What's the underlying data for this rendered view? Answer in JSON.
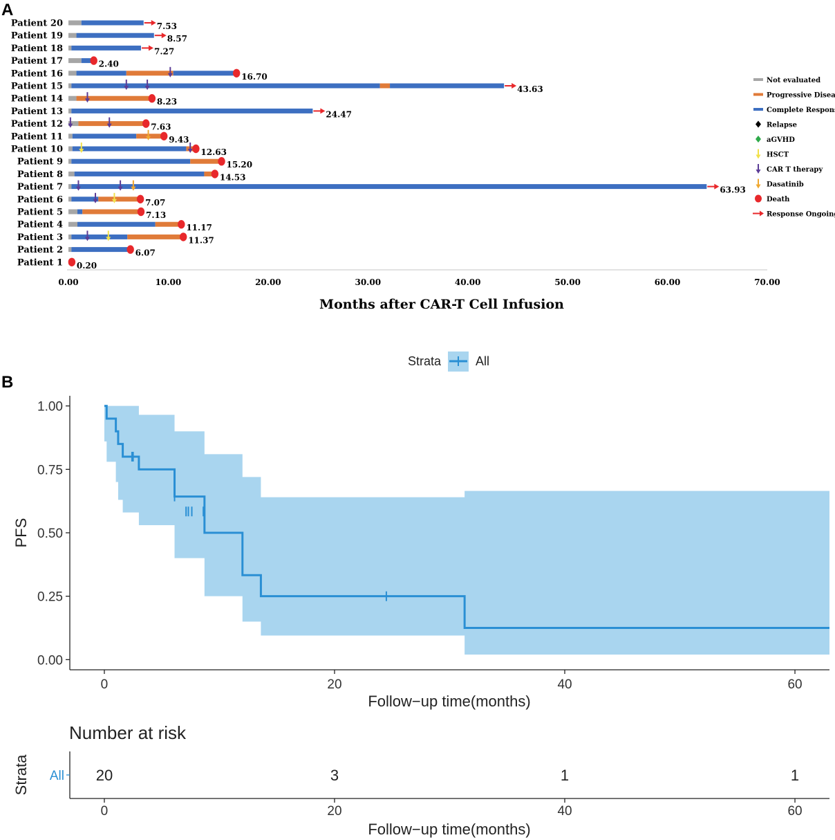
{
  "panel_labels": {
    "a": "A",
    "b": "B"
  },
  "colors": {
    "not_evaluated": "#a6a6a6",
    "progressive": "#e07b39",
    "complete": "#3d6fc1",
    "relapse": "#000000",
    "agvhd": "#2eaa4a",
    "hsct": "#f2e14a",
    "cart": "#5b3c96",
    "dasatinib": "#f0a830",
    "death": "#e8282b",
    "ongoing": "#e8282b",
    "km_line": "#2a8fd4",
    "km_band": "#a9d5ef"
  },
  "chart_data": [
    {
      "type": "bar",
      "subtype": "swimmer",
      "xlabel": "Months after CAR-T Cell Infusion",
      "xlim": [
        0,
        70
      ],
      "xticks": [
        "0.00",
        "10.00",
        "20.00",
        "30.00",
        "40.00",
        "50.00",
        "60.00",
        "70.00"
      ],
      "legend_position": "right",
      "legend": [
        {
          "key": "not_evaluated",
          "label": "Not evaluated",
          "shape": "line"
        },
        {
          "key": "progressive",
          "label": "Progressive Disease",
          "shape": "line"
        },
        {
          "key": "complete",
          "label": "Complete Response",
          "shape": "line"
        },
        {
          "key": "relapse",
          "label": "Relapse",
          "shape": "diamond"
        },
        {
          "key": "agvhd",
          "label": "aGVHD",
          "shape": "diamond"
        },
        {
          "key": "hsct",
          "label": "HSCT",
          "shape": "arrow"
        },
        {
          "key": "cart",
          "label": "CAR T therapy",
          "shape": "arrow"
        },
        {
          "key": "dasatinib",
          "label": "Dasatinib",
          "shape": "arrow"
        },
        {
          "key": "death",
          "label": "Death",
          "shape": "circle"
        },
        {
          "key": "ongoing",
          "label": "Response Ongoing",
          "shape": "rarrow"
        }
      ],
      "patients": [
        {
          "label": "Patient 1",
          "total": 0.2,
          "value_label": "0.20",
          "end": "death",
          "segments": [
            {
              "s": "not_evaluated",
              "from": 0,
              "to": 0.2
            }
          ],
          "events": []
        },
        {
          "label": "Patient 2",
          "total": 6.07,
          "value_label": "6.07",
          "end": "death",
          "segments": [
            {
              "s": "not_evaluated",
              "from": 0,
              "to": 0.3
            },
            {
              "s": "complete",
              "from": 0.3,
              "to": 6.07
            }
          ],
          "events": []
        },
        {
          "label": "Patient 3",
          "total": 11.37,
          "value_label": "11.37",
          "end": "death",
          "segments": [
            {
              "s": "not_evaluated",
              "from": 0,
              "to": 0.3
            },
            {
              "s": "complete",
              "from": 0.3,
              "to": 5.9
            },
            {
              "s": "progressive",
              "from": 5.9,
              "to": 11.37
            }
          ],
          "events": [
            {
              "type": "cart",
              "t": 1.9
            },
            {
              "type": "hsct",
              "t": 4.0
            }
          ]
        },
        {
          "label": "Patient 4",
          "total": 11.17,
          "value_label": "11.17",
          "end": "death",
          "segments": [
            {
              "s": "not_evaluated",
              "from": 0,
              "to": 0.9
            },
            {
              "s": "complete",
              "from": 0.9,
              "to": 8.7
            },
            {
              "s": "progressive",
              "from": 8.7,
              "to": 11.17
            }
          ],
          "events": []
        },
        {
          "label": "Patient 5",
          "total": 7.13,
          "value_label": "7.13",
          "end": "death",
          "segments": [
            {
              "s": "not_evaluated",
              "from": 0,
              "to": 0.9
            },
            {
              "s": "complete",
              "from": 0.9,
              "to": 1.4
            },
            {
              "s": "progressive",
              "from": 1.4,
              "to": 7.13
            }
          ],
          "events": []
        },
        {
          "label": "Patient 6",
          "total": 7.07,
          "value_label": "7.07",
          "end": "death",
          "segments": [
            {
              "s": "not_evaluated",
              "from": 0,
              "to": 0.3
            },
            {
              "s": "complete",
              "from": 0.3,
              "to": 3.0
            },
            {
              "s": "progressive",
              "from": 3.0,
              "to": 7.07
            }
          ],
          "events": [
            {
              "type": "cart",
              "t": 2.7
            },
            {
              "type": "hsct",
              "t": 4.6
            }
          ]
        },
        {
          "label": "Patient 7",
          "total": 63.93,
          "value_label": "63.93",
          "end": "ongoing",
          "segments": [
            {
              "s": "not_evaluated",
              "from": 0,
              "to": 0.3
            },
            {
              "s": "complete",
              "from": 0.3,
              "to": 63.93
            }
          ],
          "events": [
            {
              "type": "cart",
              "t": 1.0
            },
            {
              "type": "cart",
              "t": 5.2
            },
            {
              "type": "dasatinib",
              "t": 6.5
            }
          ]
        },
        {
          "label": "Patient 8",
          "total": 14.53,
          "value_label": "14.53",
          "end": "death",
          "segments": [
            {
              "s": "not_evaluated",
              "from": 0,
              "to": 0.6
            },
            {
              "s": "complete",
              "from": 0.6,
              "to": 13.6
            },
            {
              "s": "progressive",
              "from": 13.6,
              "to": 14.53
            }
          ],
          "events": []
        },
        {
          "label": "Patient 9",
          "total": 15.2,
          "value_label": "15.20",
          "end": "death",
          "segments": [
            {
              "s": "not_evaluated",
              "from": 0,
              "to": 0.3
            },
            {
              "s": "complete",
              "from": 0.3,
              "to": 12.2
            },
            {
              "s": "progressive",
              "from": 12.2,
              "to": 15.2
            }
          ],
          "events": []
        },
        {
          "label": "Patient 10",
          "total": 12.63,
          "value_label": "12.63",
          "end": "death",
          "segments": [
            {
              "s": "not_evaluated",
              "from": 0,
              "to": 0.4
            },
            {
              "s": "complete",
              "from": 0.4,
              "to": 11.8
            },
            {
              "s": "progressive",
              "from": 11.8,
              "to": 12.63
            }
          ],
          "events": [
            {
              "type": "hsct",
              "t": 1.3
            },
            {
              "type": "cart",
              "t": 12.2
            }
          ]
        },
        {
          "label": "Patient 11",
          "total": 9.43,
          "value_label": "9.43",
          "end": "death",
          "segments": [
            {
              "s": "not_evaluated",
              "from": 0,
              "to": 0.4
            },
            {
              "s": "complete",
              "from": 0.4,
              "to": 6.8
            },
            {
              "s": "progressive",
              "from": 6.8,
              "to": 9.43
            }
          ],
          "events": [
            {
              "type": "dasatinib",
              "t": 8.0
            }
          ]
        },
        {
          "label": "Patient 12",
          "total": 7.63,
          "value_label": "7.63",
          "end": "death",
          "segments": [
            {
              "s": "not_evaluated",
              "from": 0,
              "to": 1.0
            },
            {
              "s": "progressive",
              "from": 1.0,
              "to": 7.63
            }
          ],
          "events": [
            {
              "type": "cart",
              "t": 0.2
            },
            {
              "type": "cart",
              "t": 4.1
            }
          ]
        },
        {
          "label": "Patient 13",
          "total": 24.47,
          "value_label": "24.47",
          "end": "ongoing",
          "segments": [
            {
              "s": "not_evaluated",
              "from": 0,
              "to": 0.3
            },
            {
              "s": "complete",
              "from": 0.3,
              "to": 24.47
            }
          ],
          "events": []
        },
        {
          "label": "Patient 14",
          "total": 8.23,
          "value_label": "8.23",
          "end": "death",
          "segments": [
            {
              "s": "not_evaluated",
              "from": 0,
              "to": 0.8
            },
            {
              "s": "progressive",
              "from": 0.8,
              "to": 8.23
            }
          ],
          "events": [
            {
              "type": "cart",
              "t": 1.9
            }
          ]
        },
        {
          "label": "Patient 15",
          "total": 43.63,
          "value_label": "43.63",
          "end": "ongoing",
          "segments": [
            {
              "s": "not_evaluated",
              "from": 0,
              "to": 0.3
            },
            {
              "s": "complete",
              "from": 0.3,
              "to": 31.2
            },
            {
              "s": "progressive",
              "from": 31.2,
              "to": 32.2
            },
            {
              "s": "complete",
              "from": 32.2,
              "to": 43.63
            }
          ],
          "events": [
            {
              "type": "cart",
              "t": 5.8
            },
            {
              "type": "cart",
              "t": 7.9
            }
          ]
        },
        {
          "label": "Patient 16",
          "total": 16.7,
          "value_label": "16.70",
          "end": "death",
          "segments": [
            {
              "s": "not_evaluated",
              "from": 0,
              "to": 0.8
            },
            {
              "s": "complete",
              "from": 0.8,
              "to": 5.8
            },
            {
              "s": "progressive",
              "from": 5.8,
              "to": 10.5
            },
            {
              "s": "complete",
              "from": 10.5,
              "to": 16.7
            }
          ],
          "events": [
            {
              "type": "cart",
              "t": 10.2
            }
          ]
        },
        {
          "label": "Patient 17",
          "total": 2.4,
          "value_label": "2.40",
          "end": "death",
          "segments": [
            {
              "s": "not_evaluated",
              "from": 0,
              "to": 1.3
            },
            {
              "s": "complete",
              "from": 1.3,
              "to": 2.4
            }
          ],
          "events": []
        },
        {
          "label": "Patient 18",
          "total": 7.27,
          "value_label": "7.27",
          "end": "ongoing",
          "segments": [
            {
              "s": "not_evaluated",
              "from": 0,
              "to": 0.3
            },
            {
              "s": "complete",
              "from": 0.3,
              "to": 7.27
            }
          ],
          "events": []
        },
        {
          "label": "Patient 19",
          "total": 8.57,
          "value_label": "8.57",
          "end": "ongoing",
          "segments": [
            {
              "s": "not_evaluated",
              "from": 0,
              "to": 0.8
            },
            {
              "s": "complete",
              "from": 0.8,
              "to": 8.57
            }
          ],
          "events": []
        },
        {
          "label": "Patient 20",
          "total": 7.53,
          "value_label": "7.53",
          "end": "ongoing",
          "segments": [
            {
              "s": "not_evaluated",
              "from": 0,
              "to": 1.3
            },
            {
              "s": "complete",
              "from": 1.3,
              "to": 7.53
            }
          ],
          "events": []
        }
      ]
    },
    {
      "type": "line",
      "subtype": "kaplan-meier",
      "legend_title": "Strata",
      "legend_label": "All",
      "legend_position": "top",
      "ylabel": "PFS",
      "xlabel": "Follow−up time(months)",
      "xlim": [
        -3,
        63
      ],
      "ylim": [
        -0.04,
        1.04
      ],
      "xticks": [
        0,
        20,
        40,
        60
      ],
      "yticks": [
        "0.00",
        "0.25",
        "0.50",
        "0.75",
        "1.00"
      ],
      "series": [
        {
          "name": "All",
          "step_times": [
            0,
            0.2,
            1.0,
            1.2,
            1.6,
            3.0,
            6.1,
            8.7,
            12.0,
            13.6,
            31.3,
            63
          ],
          "surv": [
            1.0,
            0.95,
            0.9,
            0.85,
            0.8,
            0.75,
            0.643,
            0.5,
            0.333,
            0.25,
            0.125,
            0.125
          ],
          "lower": [
            0.86,
            0.78,
            0.7,
            0.63,
            0.58,
            0.53,
            0.4,
            0.25,
            0.15,
            0.095,
            0.02,
            0.02
          ],
          "upper": [
            1.0,
            1.0,
            1.0,
            1.0,
            1.0,
            0.965,
            0.9,
            0.81,
            0.72,
            0.64,
            0.665,
            0.665
          ],
          "censor_times": [
            2.4,
            2.5,
            6.1,
            7.1,
            7.3,
            7.6,
            8.6,
            24.5
          ],
          "censor_surv": [
            0.8,
            0.8,
            0.643,
            0.584,
            0.584,
            0.584,
            0.584,
            0.25
          ]
        }
      ]
    },
    {
      "type": "table",
      "subtype": "risk-table",
      "title": "Number at risk",
      "ylabel": "Strata",
      "xlabel": "Follow−up time(months)",
      "xlim": [
        -3,
        63
      ],
      "xticks": [
        0,
        20,
        40,
        60
      ],
      "rows": [
        {
          "strata": "All",
          "times": [
            0,
            20,
            40,
            60
          ],
          "counts": [
            20,
            3,
            1,
            1
          ]
        }
      ]
    }
  ]
}
